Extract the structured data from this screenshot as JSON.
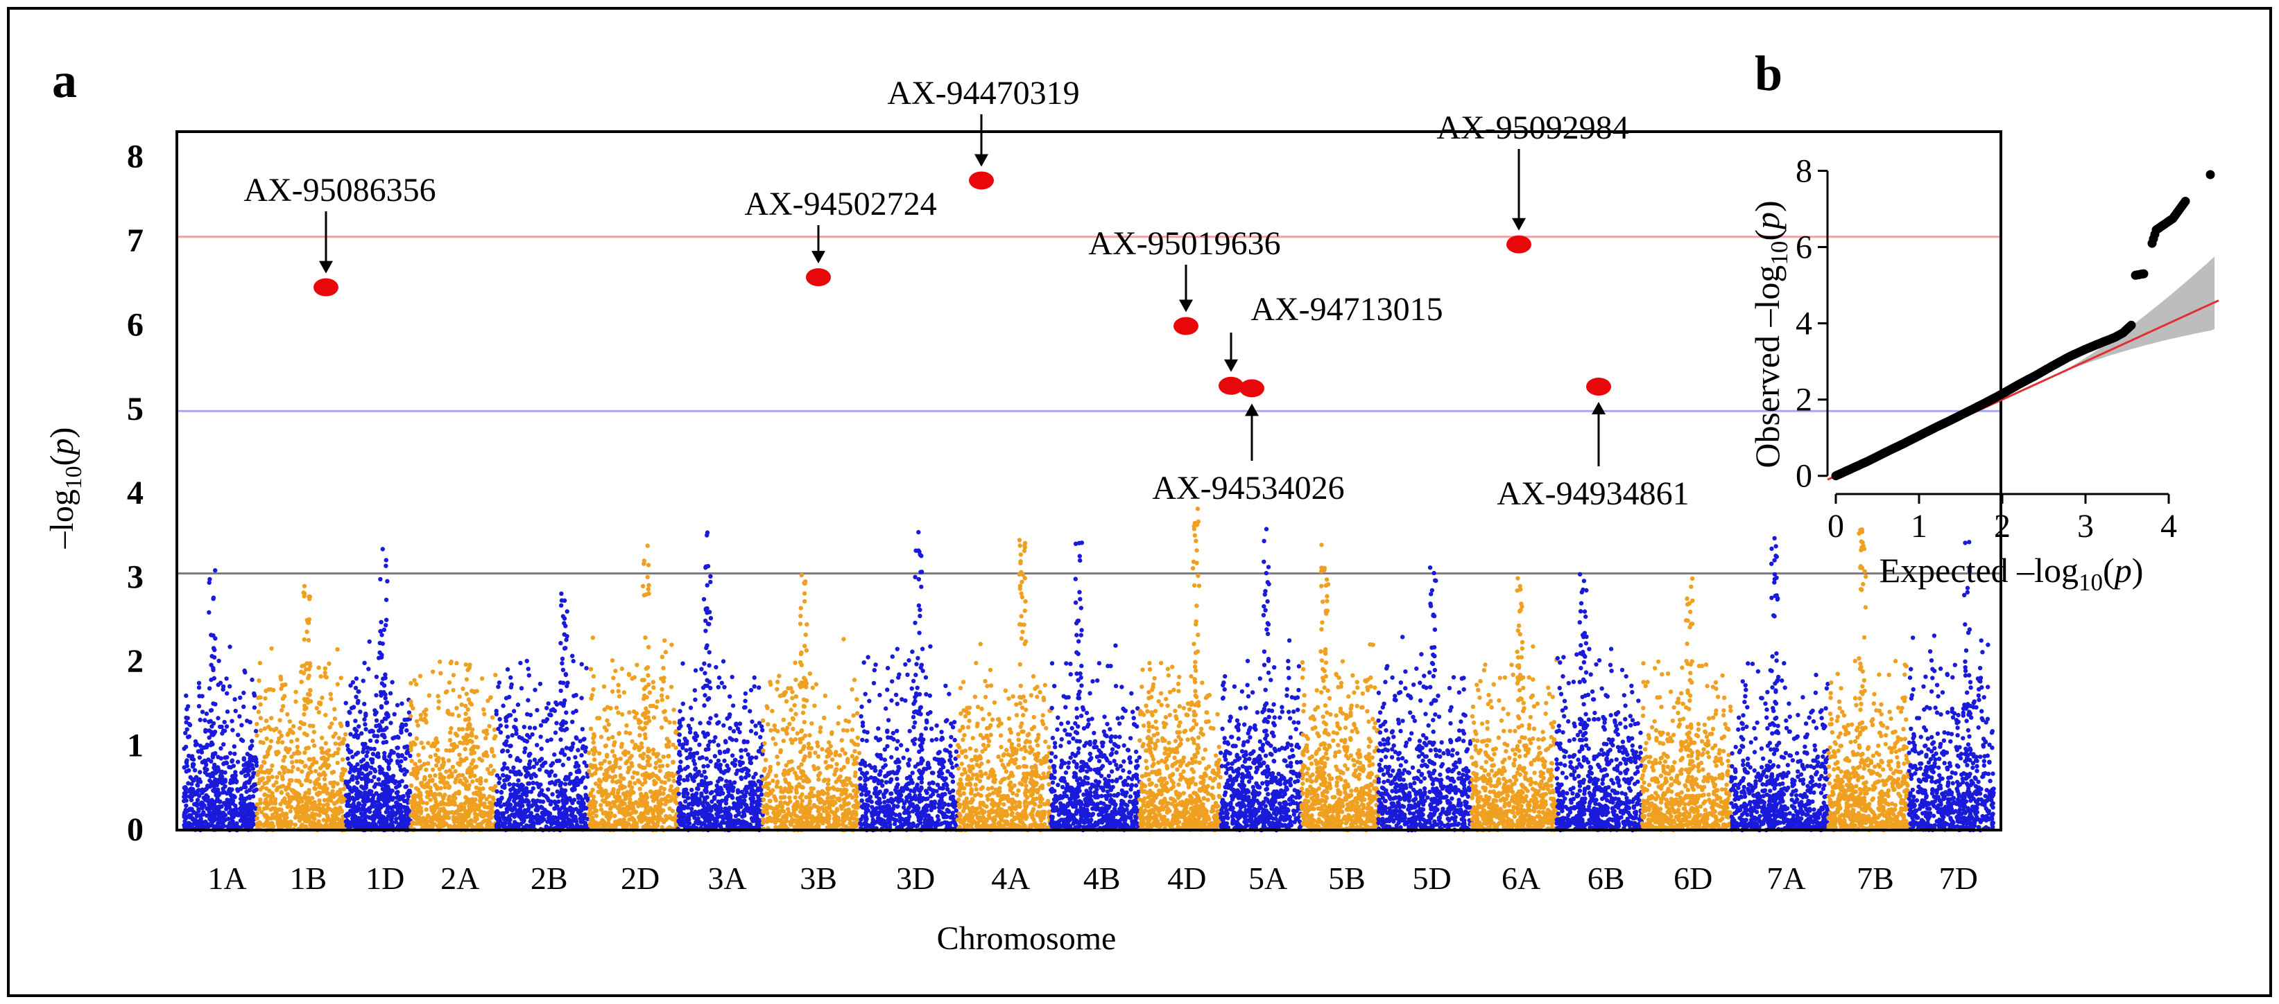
{
  "chart_data": [
    {
      "panel_label": "a",
      "type": "scatter",
      "subtype": "manhattan",
      "xlabel": "Chromosome",
      "ylabel": "–log10(p)",
      "ylim": [
        0,
        8.3
      ],
      "yticks": [
        0,
        1,
        2,
        3,
        4,
        5,
        6,
        7,
        8
      ],
      "categories": [
        "1A",
        "1B",
        "1D",
        "2A",
        "2B",
        "2D",
        "3A",
        "3B",
        "3D",
        "4A",
        "4B",
        "4D",
        "5A",
        "5B",
        "5D",
        "6A",
        "6B",
        "6D",
        "7A",
        "7B",
        "7D"
      ],
      "category_colors": [
        "#1a1adb",
        "#f0a020"
      ],
      "thresholds": [
        {
          "y": 7.05,
          "color": "#f2a0a0"
        },
        {
          "y": 4.98,
          "color": "#a8a8e8"
        },
        {
          "y": 3.05,
          "color": "#7a7a7a"
        }
      ],
      "significant_snps": [
        {
          "name": "AX-95086356",
          "chromosome": "1D",
          "y": 6.45,
          "arrow": "down"
        },
        {
          "name": "AX-94502724",
          "chromosome": "3D",
          "y": 6.57,
          "arrow": "down"
        },
        {
          "name": "AX-94470319",
          "chromosome": "4B",
          "y": 7.72,
          "arrow": "down"
        },
        {
          "name": "AX-95019636",
          "chromosome": "5B",
          "y": 5.99,
          "arrow": "down"
        },
        {
          "name": "AX-94713015",
          "chromosome": "5D",
          "y": 5.28,
          "arrow": "down"
        },
        {
          "name": "AX-94534026",
          "chromosome": "5D",
          "y": 5.25,
          "arrow": "up"
        },
        {
          "name": "AX-95092984",
          "chromosome": "7A",
          "y": 6.96,
          "arrow": "down"
        },
        {
          "name": "AX-94934861",
          "chromosome": "7D",
          "y": 5.27,
          "arrow": "up"
        }
      ],
      "highlight_color": "#e8080c",
      "chromosome_peaks": [
        3.1,
        2.9,
        3.35,
        2.0,
        2.85,
        3.4,
        3.6,
        3.15,
        3.6,
        3.45,
        3.5,
        3.85,
        3.6,
        3.55,
        3.3,
        3.0,
        3.05,
        3.0,
        3.5,
        3.65,
        3.45
      ]
    },
    {
      "panel_label": "b",
      "type": "scatter",
      "subtype": "qq",
      "xlabel": "Expected –log10(p)",
      "ylabel": "Observed –log10(p)",
      "xlim": [
        -0.1,
        4.65
      ],
      "ylim": [
        -0.15,
        8.3
      ],
      "xticks": [
        0,
        1,
        2,
        3,
        4
      ],
      "yticks": [
        0,
        2,
        4,
        6,
        8
      ],
      "reference_line": {
        "from": [
          -0.1,
          -0.1
        ],
        "to": [
          4.6,
          4.6
        ],
        "color": "#e03030"
      },
      "confidence_band_color": "#bdbdbd",
      "points": [
        [
          0.0,
          0.0
        ],
        [
          0.2,
          0.2
        ],
        [
          0.4,
          0.4
        ],
        [
          0.6,
          0.62
        ],
        [
          0.8,
          0.83
        ],
        [
          1.0,
          1.05
        ],
        [
          1.2,
          1.27
        ],
        [
          1.4,
          1.48
        ],
        [
          1.6,
          1.7
        ],
        [
          1.8,
          1.92
        ],
        [
          2.0,
          2.15
        ],
        [
          2.2,
          2.4
        ],
        [
          2.4,
          2.63
        ],
        [
          2.6,
          2.88
        ],
        [
          2.8,
          3.12
        ],
        [
          3.0,
          3.32
        ],
        [
          3.2,
          3.5
        ],
        [
          3.35,
          3.63
        ],
        [
          3.45,
          3.75
        ],
        [
          3.55,
          3.95
        ],
        [
          3.6,
          5.26
        ],
        [
          3.65,
          5.28
        ],
        [
          3.7,
          5.3
        ],
        [
          3.8,
          6.1
        ],
        [
          3.85,
          6.45
        ],
        [
          3.95,
          6.6
        ],
        [
          4.05,
          6.75
        ],
        [
          4.2,
          7.2
        ],
        [
          4.5,
          7.9
        ]
      ],
      "point_color": "#000000"
    }
  ]
}
